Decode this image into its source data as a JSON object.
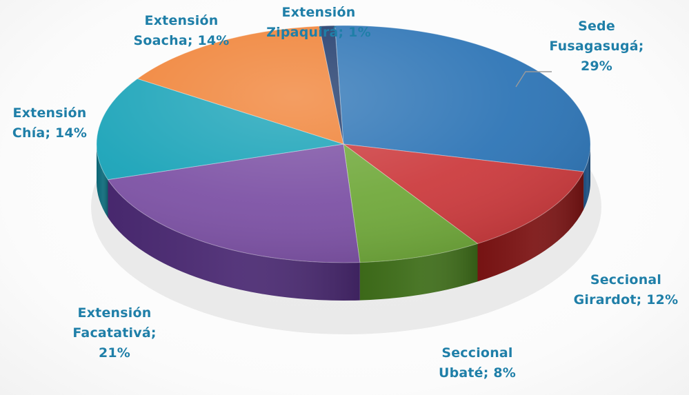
{
  "chart_data": {
    "type": "pie",
    "style": "3d",
    "title": "",
    "slices": [
      {
        "label": "Sede Fusagasugá",
        "value": 29,
        "display": "Sede\nFusagasugá;\n29%",
        "color": "#2e75b6",
        "side_color": "#1b4f82"
      },
      {
        "label": "Seccional Girardot",
        "value": 12,
        "display": "Seccional\nGirardot; 12%",
        "color": "#cc3c3f",
        "side_color": "#7c1414"
      },
      {
        "label": "Seccional Ubaté",
        "value": 8,
        "display": "Seccional\nUbaté; 8%",
        "color": "#71a93c",
        "side_color": "#3f6e1a"
      },
      {
        "label": "Extensión Facatativá",
        "value": 21,
        "display": "Extensión\nFacatativá;\n21%",
        "color": "#7d52a5",
        "side_color": "#4b2a73"
      },
      {
        "label": "Extensión Chía",
        "value": 14,
        "display": "Extensión\nChía; 14%",
        "color": "#19a3b8",
        "side_color": "#0d6b7b"
      },
      {
        "label": "Extensión Soacha",
        "value": 14,
        "display": "Extensión\nSoacha; 14%",
        "color": "#f08236",
        "side_color": "#a14d12"
      },
      {
        "label": "Extensión Zipaquirá",
        "value": 1,
        "display": "Extensión\nZipaquirá; 1%",
        "color": "#1f3a6b",
        "side_color": "#122446"
      }
    ],
    "label_color": "#1f7fa8",
    "legend": "none"
  }
}
